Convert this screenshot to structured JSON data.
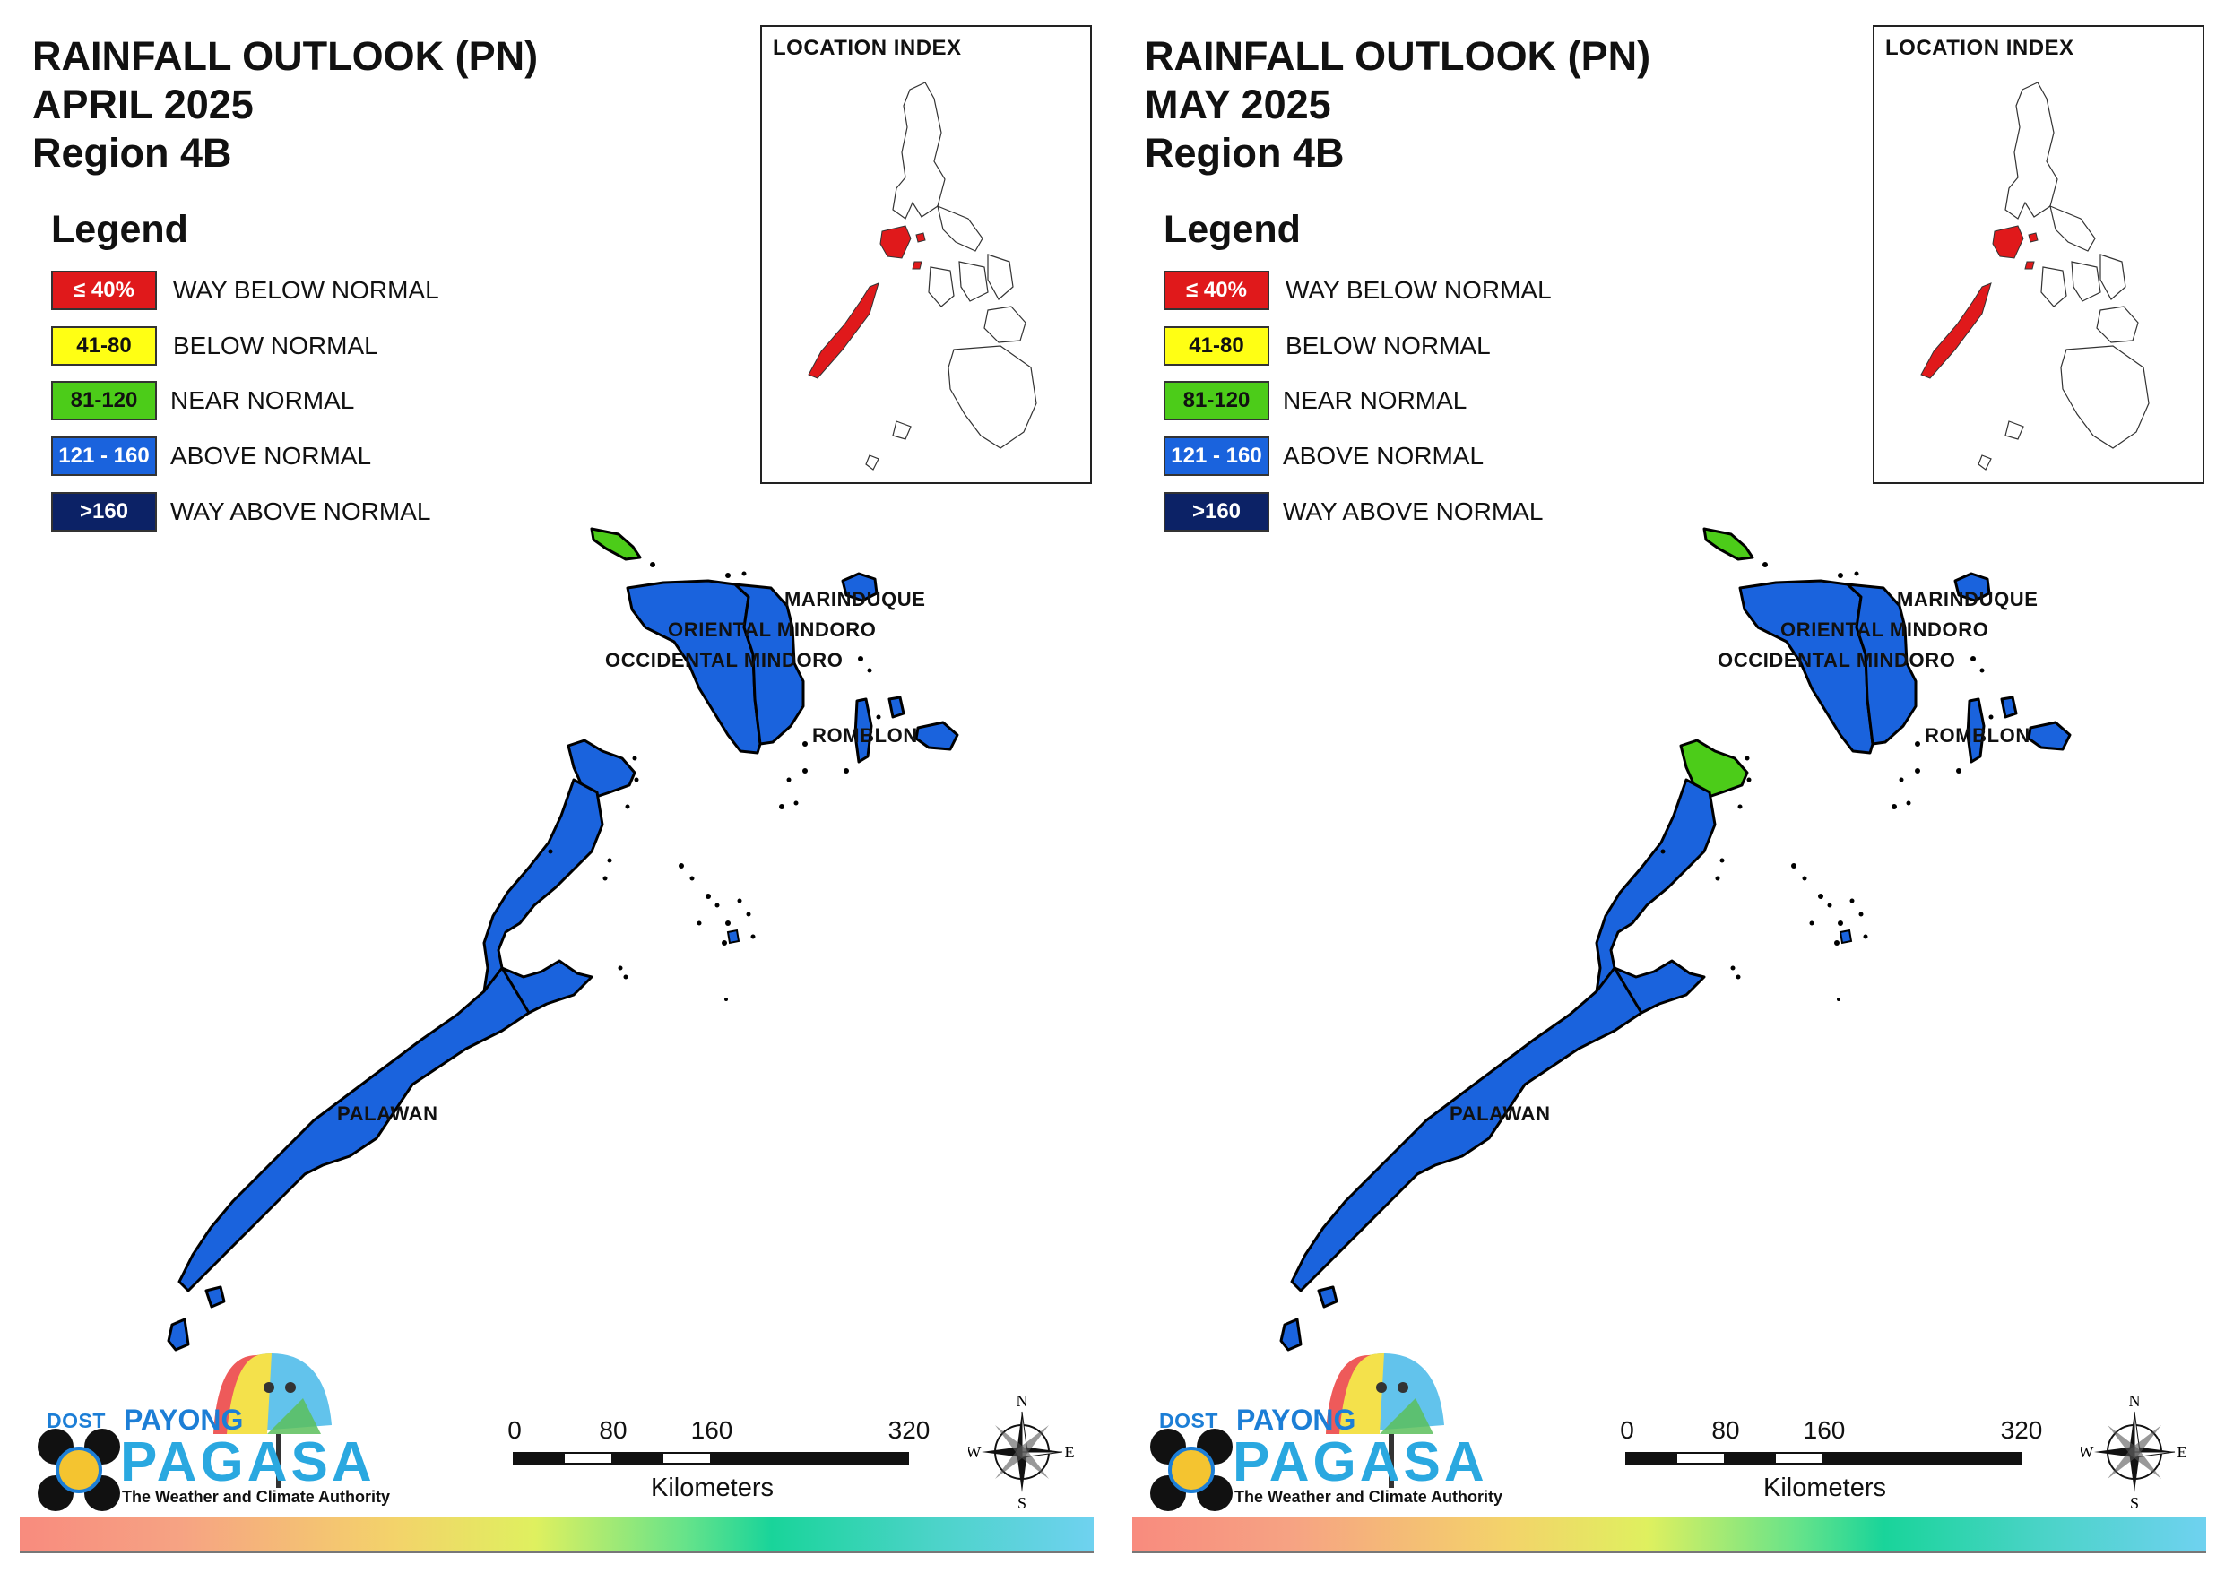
{
  "legend": {
    "heading": "Legend",
    "items": [
      {
        "range": "≤ 40%",
        "label": "WAY BELOW NORMAL",
        "color": "#e0191b",
        "text_color": "#ffffff"
      },
      {
        "range": "41-80",
        "label": "BELOW NORMAL",
        "color": "#ffff14",
        "text_color": "#111111"
      },
      {
        "range": "81-120",
        "label": "NEAR NORMAL",
        "color": "#4ccc19",
        "text_color": "#111111"
      },
      {
        "range": "121 - 160",
        "label": "ABOVE NORMAL",
        "color": "#1a63dd",
        "text_color": "#ffffff"
      },
      {
        "range": ">160",
        "label": "WAY ABOVE NORMAL",
        "color": "#0c2266",
        "text_color": "#ffffff"
      }
    ]
  },
  "inset": {
    "title": "LOCATION INDEX",
    "highlight_color": "#e0191b"
  },
  "places": {
    "marinduque": "MARINDUQUE",
    "oriental_mindoro": "ORIENTAL MINDORO",
    "occidental_mindoro": "OCCIDENTAL MINDORO",
    "romblon": "ROMBLON",
    "palawan": "PALAWAN"
  },
  "scale": {
    "ticks": [
      "0",
      "80",
      "160",
      "320"
    ],
    "unit": "Kilometers"
  },
  "compass": {
    "n": "N",
    "s": "S",
    "e": "E",
    "w": "W"
  },
  "logo": {
    "dost": "DOST",
    "payong": "PAYONG",
    "pagasa": "PAGASA",
    "tagline": "The Weather and Climate Authority"
  },
  "panels": [
    {
      "title_line1": "RAINFALL OUTLOOK (PN)",
      "title_line2": "APRIL 2025",
      "title_line3": "Region 4B",
      "map_category": {
        "lubang": "NEAR NORMAL",
        "marinduque": "ABOVE NORMAL",
        "oriental_mindoro": "ABOVE NORMAL",
        "occidental_mindoro": "ABOVE NORMAL",
        "romblon": "ABOVE NORMAL",
        "palawan": "ABOVE NORMAL",
        "north_palawan_tip": "ABOVE NORMAL"
      }
    },
    {
      "title_line1": "RAINFALL OUTLOOK (PN)",
      "title_line2": "MAY 2025",
      "title_line3": "Region 4B",
      "map_category": {
        "lubang": "NEAR NORMAL",
        "marinduque": "ABOVE NORMAL",
        "oriental_mindoro": "ABOVE NORMAL",
        "occidental_mindoro": "ABOVE NORMAL",
        "romblon": "ABOVE NORMAL",
        "palawan": "ABOVE NORMAL",
        "north_palawan_tip": "NEAR NORMAL"
      }
    }
  ]
}
